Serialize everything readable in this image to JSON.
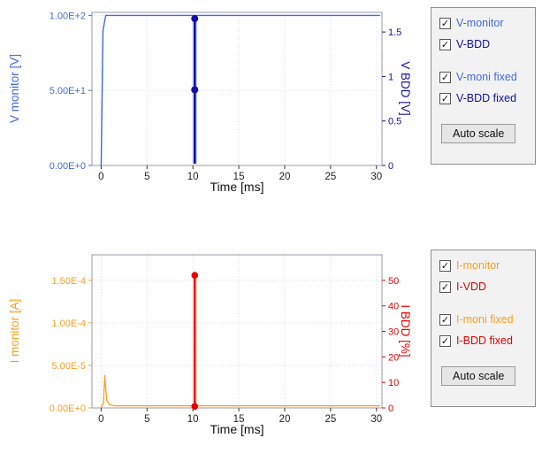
{
  "chart_data": [
    {
      "type": "line",
      "title": "",
      "xlabel": "Time [ms]",
      "x_axis": {
        "lim": [
          -1,
          30.6
        ],
        "ticks": [
          {
            "v": 0,
            "t": "0"
          },
          {
            "v": 5,
            "t": "5"
          },
          {
            "v": 10,
            "t": "10"
          },
          {
            "v": 15,
            "t": "15"
          },
          {
            "v": 20,
            "t": "20"
          },
          {
            "v": 25,
            "t": "25"
          },
          {
            "v": 30,
            "t": "30"
          }
        ]
      },
      "left_axis": {
        "label": "V monitor [V]",
        "color": "#4169e1",
        "lim": [
          0,
          102
        ],
        "ticks": [
          {
            "v": 0,
            "t": "0.00E+0"
          },
          {
            "v": 50,
            "t": "5.00E+1"
          },
          {
            "v": 100,
            "t": "1.00E+2"
          }
        ]
      },
      "right_axis": {
        "label": "V BDD [V]",
        "color": "#1010a5",
        "lim": [
          0,
          1.72
        ],
        "ticks": [
          {
            "v": 0,
            "t": "0"
          },
          {
            "v": 0.5,
            "t": "0.5"
          },
          {
            "v": 1,
            "t": "1"
          },
          {
            "v": 1.5,
            "t": "1.5"
          }
        ]
      },
      "grid": true,
      "series": [
        {
          "name": "V-monitor",
          "axis": "left",
          "color": "#4169e1",
          "width": 1.4,
          "x": [
            0,
            0.2,
            0.5,
            30.4
          ],
          "y": [
            0,
            90,
            100,
            100
          ]
        },
        {
          "name": "V-BDD",
          "axis": "right",
          "color": "#1010a5",
          "width": 2.6,
          "halo": "#8fa0e8",
          "x": [
            10.2,
            10.2
          ],
          "y": [
            0.02,
            1.65
          ],
          "markers": [
            {
              "x": 10.2,
              "y": 1.65
            },
            {
              "x": 10.2,
              "y": 0.85
            }
          ],
          "marker_size": 4
        }
      ]
    },
    {
      "type": "line",
      "title": "",
      "xlabel": "Time [ms]",
      "x_axis": {
        "lim": [
          -1,
          30.6
        ],
        "ticks": [
          {
            "v": 0,
            "t": "0"
          },
          {
            "v": 5,
            "t": "5"
          },
          {
            "v": 10,
            "t": "10"
          },
          {
            "v": 15,
            "t": "15"
          },
          {
            "v": 20,
            "t": "20"
          },
          {
            "v": 25,
            "t": "25"
          },
          {
            "v": 30,
            "t": "30"
          }
        ]
      },
      "left_axis": {
        "label": "I monitor [A]",
        "color": "#ff9d1e",
        "lim": [
          0,
          0.00018
        ],
        "ticks": [
          {
            "v": 0,
            "t": "0.00E+0"
          },
          {
            "v": 5e-05,
            "t": "5.00E-5"
          },
          {
            "v": 0.0001,
            "t": "1.00E-4"
          },
          {
            "v": 0.00015,
            "t": "1.50E-4"
          }
        ]
      },
      "right_axis": {
        "label": "I BDD [%]",
        "color": "#e80000",
        "lim": [
          0,
          60
        ],
        "ticks": [
          {
            "v": 0,
            "t": "0"
          },
          {
            "v": 10,
            "t": "10"
          },
          {
            "v": 20,
            "t": "20"
          },
          {
            "v": 30,
            "t": "30"
          },
          {
            "v": 40,
            "t": "40"
          },
          {
            "v": 50,
            "t": "50"
          }
        ]
      },
      "grid": true,
      "series": [
        {
          "name": "I-monitor",
          "axis": "left",
          "color": "#ff9d1e",
          "width": 1.3,
          "x": [
            0,
            0.25,
            0.4,
            0.6,
            0.9,
            1.5,
            30.4
          ],
          "y": [
            0,
            6e-06,
            3.8e-05,
            9e-06,
            4e-06,
            2.5e-06,
            2.5e-06
          ]
        },
        {
          "name": "I-BDD",
          "axis": "right",
          "color": "#e80000",
          "width": 2.2,
          "halo": "#ffb080",
          "x": [
            10.2,
            10.2
          ],
          "y": [
            0.6,
            52
          ],
          "markers": [
            {
              "x": 10.2,
              "y": 52
            },
            {
              "x": 10.2,
              "y": 0.6
            }
          ],
          "marker_size": 3.8
        }
      ]
    }
  ],
  "panels": [
    {
      "items": [
        {
          "label": "V-monitor",
          "color": "#4169e1",
          "checked": true
        },
        {
          "label": "V-BDD",
          "color": "#1010a5",
          "checked": true
        },
        {
          "label": "V-moni fixed",
          "color": "#4169e1",
          "checked": true
        },
        {
          "label": "V-BDD fixed",
          "color": "#1010a5",
          "checked": true
        }
      ],
      "button": "Auto scale"
    },
    {
      "items": [
        {
          "label": "I-monitor",
          "color": "#ff9d1e",
          "checked": true
        },
        {
          "label": "I-VDD",
          "color": "#e80000",
          "checked": true
        },
        {
          "label": "I-moni fixed",
          "color": "#ff9d1e",
          "checked": true
        },
        {
          "label": "I-BDD fixed",
          "color": "#e80000",
          "checked": true
        }
      ],
      "button": "Auto scale"
    }
  ],
  "glyphs": {
    "check": "✓"
  }
}
